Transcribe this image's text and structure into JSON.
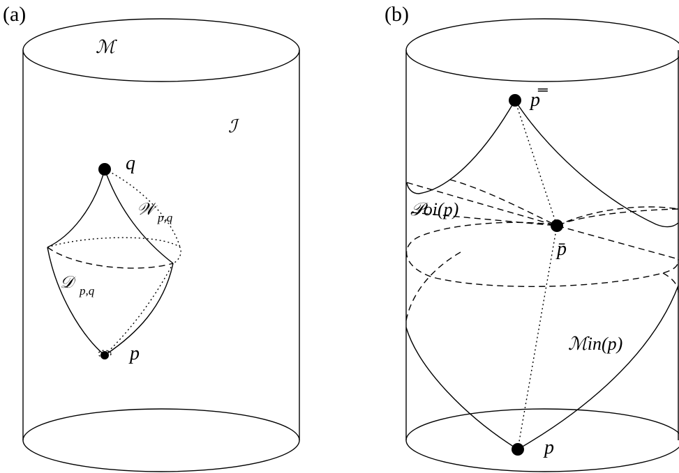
{
  "panels": {
    "a": {
      "label": "(a)",
      "manifold_label": "ℳ",
      "infinity_label": "ℐ",
      "point_q": "q",
      "point_p": "p",
      "wall_label": "𝒲",
      "wall_subscript": "p,q",
      "diamond_label": "𝒟",
      "diamond_subscript": "p,q"
    },
    "b": {
      "label": "(b)",
      "point_top": "p̿",
      "point_mid": "p̄",
      "point_p": "p",
      "poi_label": "𝒫oi(p)",
      "min_label": "ℳin(p)"
    }
  }
}
